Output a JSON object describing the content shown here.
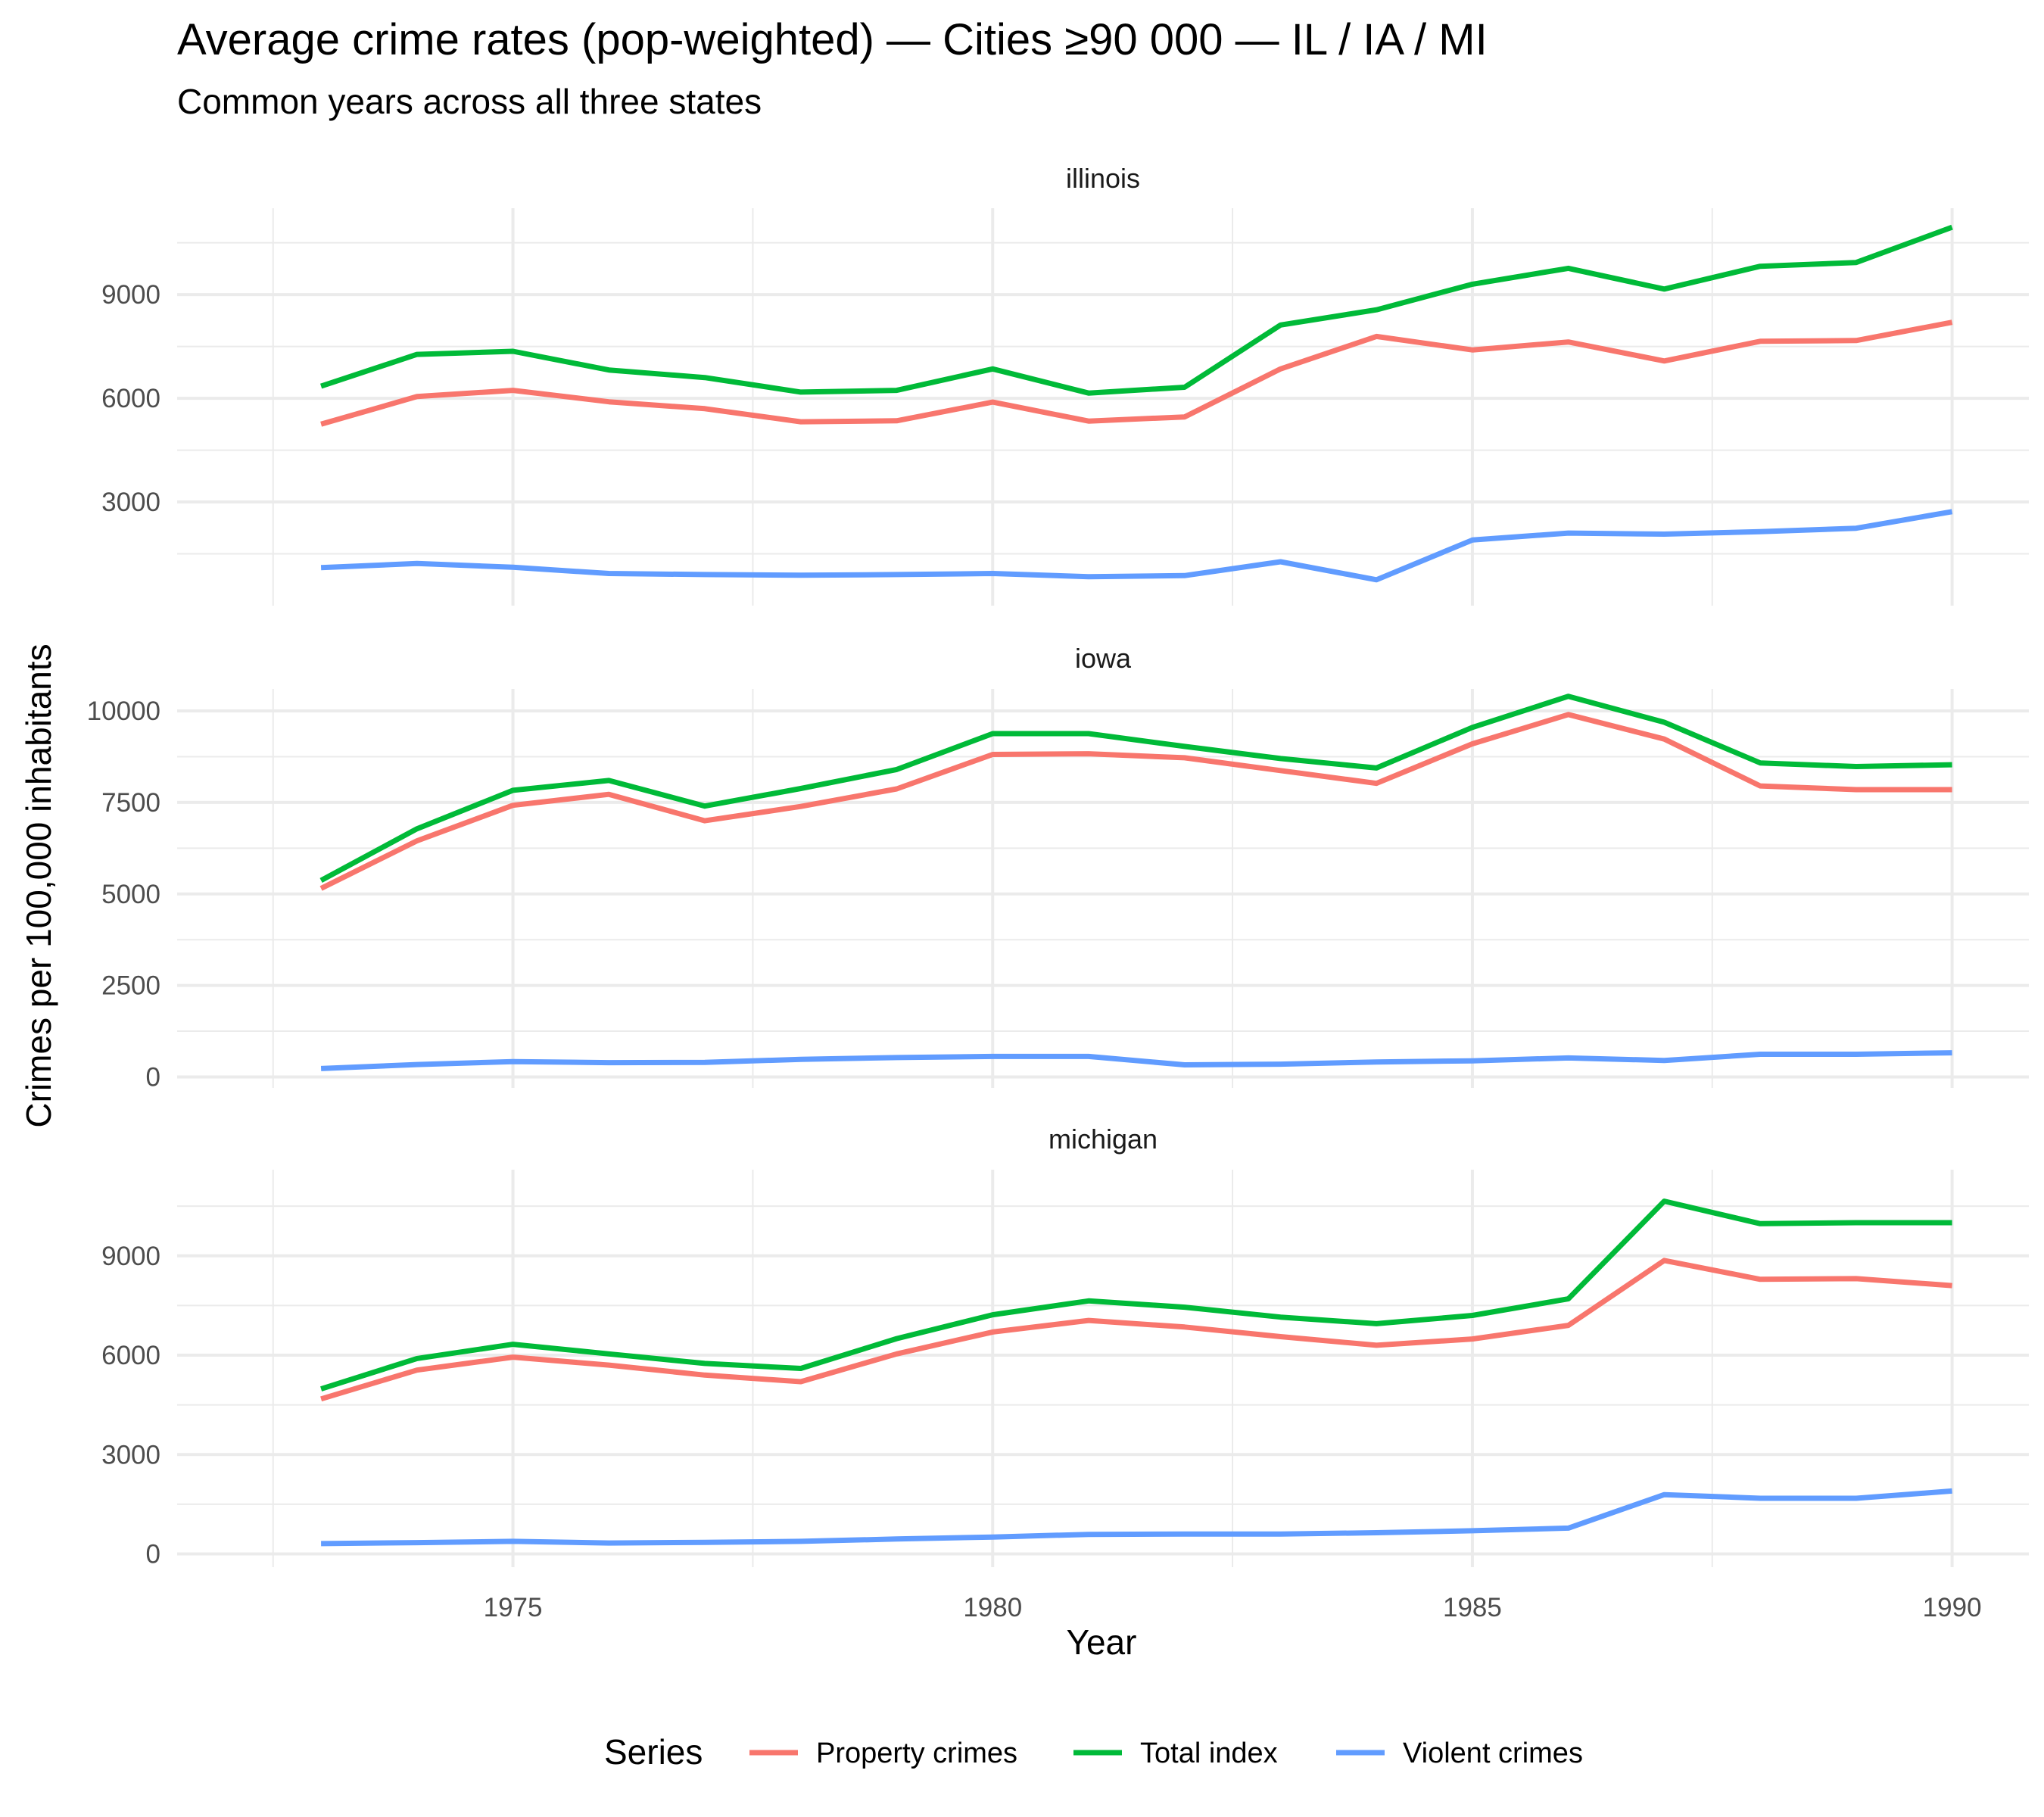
{
  "chart_data": {
    "type": "line",
    "title": "Average crime rates (pop-weighted) — Cities ≥90 000 — IL / IA / MI",
    "subtitle": "Common years across all three states",
    "xlabel": "Year",
    "ylabel": "Crimes per 100,000 inhabitants",
    "x": [
      1973,
      1974,
      1975,
      1976,
      1977,
      1978,
      1979,
      1980,
      1981,
      1982,
      1983,
      1984,
      1985,
      1986,
      1987,
      1988,
      1989,
      1990
    ],
    "xlim": [
      1971.5,
      1990.8
    ],
    "xticks": [
      1975,
      1980,
      1985,
      1990
    ],
    "grid": true,
    "legend": {
      "title": "Series",
      "position": "bottom",
      "entries": [
        "Property crimes",
        "Total index",
        "Violent crimes"
      ]
    },
    "colors": {
      "Property crimes": "#F8766D",
      "Total index": "#00BA38",
      "Violent crimes": "#619CFF"
    },
    "panels": [
      {
        "label": "illinois",
        "ylim": [
          0,
          11500
        ],
        "yticks": [
          3000,
          6000,
          9000
        ],
        "series": [
          {
            "name": "Property crimes",
            "values": [
              5250,
              6050,
              6230,
              5900,
              5700,
              5320,
              5350,
              5890,
              5340,
              5460,
              6850,
              7790,
              7400,
              7630,
              7080,
              7650,
              7670,
              8200
            ]
          },
          {
            "name": "Total index",
            "values": [
              6350,
              7270,
              7360,
              6820,
              6600,
              6180,
              6230,
              6850,
              6150,
              6320,
              8120,
              8560,
              9300,
              9760,
              9160,
              9820,
              9930,
              10950
            ]
          },
          {
            "name": "Violent crimes",
            "values": [
              1100,
              1220,
              1110,
              930,
              900,
              880,
              900,
              930,
              840,
              870,
              1270,
              750,
              1900,
              2100,
              2070,
              2140,
              2240,
              2720
            ]
          }
        ]
      },
      {
        "label": "iowa",
        "ylim": [
          -300,
          10600
        ],
        "yticks": [
          0,
          2500,
          5000,
          7500,
          10000
        ],
        "series": [
          {
            "name": "Property crimes",
            "values": [
              5150,
              6450,
              7420,
              7720,
              7000,
              7390,
              7870,
              8810,
              8830,
              8720,
              8370,
              8020,
              9100,
              9900,
              9230,
              7950,
              7850,
              7850
            ]
          },
          {
            "name": "Total index",
            "values": [
              5370,
              6780,
              7830,
              8100,
              7400,
              7880,
              8400,
              9380,
              9380,
              9030,
              8700,
              8440,
              9550,
              10400,
              9690,
              8580,
              8480,
              8530
            ]
          },
          {
            "name": "Violent crimes",
            "values": [
              230,
              340,
              420,
              390,
              400,
              480,
              530,
              560,
              560,
              330,
              350,
              410,
              440,
              520,
              450,
              620,
              620,
              660
            ]
          }
        ]
      },
      {
        "label": "michigan",
        "ylim": [
          -400,
          11600
        ],
        "yticks": [
          0,
          3000,
          6000,
          9000
        ],
        "series": [
          {
            "name": "Property crimes",
            "values": [
              4680,
              5550,
              5940,
              5700,
              5400,
              5200,
              6040,
              6700,
              7050,
              6850,
              6560,
              6300,
              6490,
              6900,
              8860,
              8290,
              8310,
              8100
            ]
          },
          {
            "name": "Total index",
            "values": [
              4980,
              5900,
              6330,
              6040,
              5750,
              5600,
              6500,
              7220,
              7640,
              7450,
              7150,
              6950,
              7200,
              7700,
              10650,
              9970,
              10000,
              10000
            ]
          },
          {
            "name": "Violent crimes",
            "values": [
              310,
              340,
              380,
              330,
              350,
              380,
              450,
              510,
              590,
              600,
              600,
              640,
              700,
              780,
              1790,
              1680,
              1680,
              1900
            ]
          }
        ]
      }
    ]
  }
}
